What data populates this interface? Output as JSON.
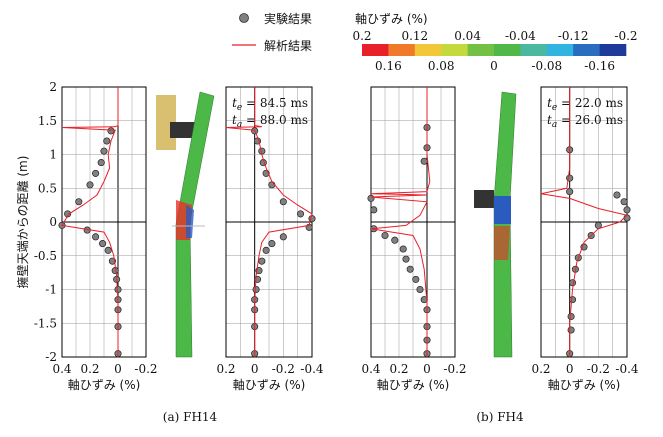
{
  "legend": [
    {
      "name": "実験結果",
      "color": "#808080",
      "marker": "circle"
    },
    {
      "name": "解析結果",
      "color": "#e8202a",
      "marker": "line"
    }
  ],
  "colorbar": {
    "title": "軸ひずみ (%)",
    "ticks": [
      0.2,
      0.16,
      0.12,
      0.08,
      0.04,
      0,
      -0.04,
      -0.08,
      -0.12,
      -0.16,
      -0.2
    ],
    "colors": [
      "#e8202a",
      "#f07a2a",
      "#f2c83a",
      "#c4d93c",
      "#74c044",
      "#50b848",
      "#4cb8a0",
      "#30b4e0",
      "#2a6cc0",
      "#1e3a9a"
    ]
  },
  "captions": [
    "(a) FH14",
    "(b) FH4"
  ],
  "chart_data": [
    {
      "type": "line",
      "ylabel": "擁壁天端からの距離 (m)",
      "xlabel": "軸ひずみ (%)",
      "ytick_labels": true,
      "xlim": [
        0.4,
        -0.2
      ],
      "xticks": [
        0.4,
        0.2,
        0,
        -0.2
      ],
      "ylim": [
        -2,
        2
      ],
      "yticks": [
        2,
        1.5,
        1,
        0.5,
        0,
        -0.5,
        -1,
        -1.5,
        -2
      ],
      "grid": true,
      "series": [
        {
          "marker": "circle",
          "color": "#808080",
          "x": [
            0.05,
            0.08,
            0.1,
            0.12,
            0.16,
            0.2,
            0.28,
            0.36,
            0.4,
            0.22,
            0.16,
            0.11,
            0.07,
            0.04,
            0.02,
            0.01,
            0,
            0,
            0,
            0,
            0
          ],
          "values": [
            1.35,
            1.2,
            1.05,
            0.88,
            0.72,
            0.55,
            0.3,
            0.12,
            -0.05,
            -0.12,
            -0.22,
            -0.32,
            -0.42,
            -0.58,
            -0.72,
            -0.85,
            -1.0,
            -1.15,
            -1.3,
            -1.55,
            -1.95
          ]
        },
        {
          "marker": "line",
          "color": "#e8202a",
          "x": [
            0,
            0,
            0,
            0.02,
            0.4,
            0.02,
            0.05,
            0.07,
            0.06,
            0.1,
            0.15,
            0.25,
            0.35,
            0.4,
            0.1,
            0.06,
            0.03,
            0.01,
            0,
            0
          ],
          "values": [
            2,
            1.5,
            1.43,
            1.41,
            1.4,
            1.36,
            1.2,
            1.0,
            0.8,
            0.6,
            0.4,
            0.25,
            0.12,
            -0.05,
            -0.15,
            -0.3,
            -0.5,
            -0.8,
            -1.2,
            -2
          ]
        }
      ]
    },
    {
      "type": "line",
      "xlabel": "軸ひずみ (%)",
      "ytick_labels": false,
      "xlim": [
        0.2,
        -0.4
      ],
      "xticks": [
        0.2,
        0,
        -0.2,
        -0.4
      ],
      "ylim": [
        -2,
        2
      ],
      "yticks": [
        2,
        1.5,
        1,
        0.5,
        0,
        -0.5,
        -1,
        -1.5,
        -2
      ],
      "grid": true,
      "annotations": [
        {
          "var": "t",
          "sub": "e",
          "text": " = 84.5 ms"
        },
        {
          "var": "t",
          "sub": "a",
          "text": " = 88.0 ms"
        }
      ],
      "series": [
        {
          "marker": "circle",
          "color": "#808080",
          "x": [
            0,
            -0.02,
            -0.05,
            -0.06,
            -0.08,
            -0.12,
            -0.2,
            -0.32,
            -0.4,
            -0.38,
            -0.2,
            -0.12,
            -0.08,
            -0.05,
            -0.03,
            -0.02,
            -0.01,
            0,
            0,
            0,
            0
          ],
          "values": [
            1.35,
            1.2,
            1.05,
            0.88,
            0.72,
            0.55,
            0.3,
            0.12,
            0.05,
            -0.08,
            -0.22,
            -0.32,
            -0.42,
            -0.58,
            -0.72,
            -0.85,
            -1.0,
            -1.15,
            -1.3,
            -1.55,
            -1.95
          ]
        },
        {
          "marker": "line",
          "color": "#e8202a",
          "x": [
            0,
            0,
            0,
            -0.05,
            0.2,
            0,
            -0.03,
            -0.05,
            -0.08,
            -0.12,
            -0.2,
            -0.3,
            -0.4,
            -0.38,
            -0.1,
            -0.05,
            -0.03,
            -0.01,
            0,
            0
          ],
          "values": [
            2,
            1.5,
            1.43,
            1.41,
            1.4,
            1.36,
            1.2,
            1.0,
            0.8,
            0.6,
            0.4,
            0.25,
            0.12,
            -0.05,
            -0.15,
            -0.3,
            -0.5,
            -0.8,
            -1.2,
            -2
          ]
        }
      ]
    },
    {
      "type": "line",
      "xlabel": "軸ひずみ (%)",
      "ytick_labels": false,
      "xlim": [
        0.4,
        -0.2
      ],
      "xticks": [
        0.4,
        0.2,
        0,
        -0.2
      ],
      "ylim": [
        -2,
        2
      ],
      "yticks": [
        2,
        1.5,
        1,
        0.5,
        0,
        -0.5,
        -1,
        -1.5,
        -2
      ],
      "grid": true,
      "series": [
        {
          "marker": "circle",
          "color": "#808080",
          "x": [
            0,
            0,
            0.02,
            0.4,
            0.38,
            0.38,
            0.3,
            0.23,
            0.17,
            0.15,
            0.12,
            0.08,
            0.05,
            0.02,
            0,
            0,
            0,
            0
          ],
          "values": [
            1.4,
            1.1,
            0.9,
            0.35,
            0.18,
            -0.1,
            -0.2,
            -0.27,
            -0.4,
            -0.55,
            -0.7,
            -0.85,
            -1.0,
            -1.15,
            -1.3,
            -1.55,
            -1.75,
            -1.95
          ]
        },
        {
          "marker": "line",
          "color": "#e8202a",
          "x": [
            0,
            0,
            0,
            -0.02,
            0,
            0.4,
            0,
            0.4,
            0,
            0.05,
            0.15,
            0.4,
            0.1,
            0.05,
            0.02,
            0,
            0
          ],
          "values": [
            2,
            1.5,
            1.0,
            0.6,
            0.45,
            0.42,
            0.4,
            0.37,
            0.3,
            0.1,
            -0.05,
            -0.1,
            -0.2,
            -0.4,
            -0.7,
            -1.2,
            -2
          ]
        }
      ]
    },
    {
      "type": "line",
      "xlabel": "軸ひずみ (%)",
      "ytick_labels": false,
      "xlim": [
        0.2,
        -0.4
      ],
      "xticks": [
        0.2,
        0,
        -0.2,
        -0.4
      ],
      "ylim": [
        -2,
        2
      ],
      "yticks": [
        2,
        1.5,
        1,
        0.5,
        0,
        -0.5,
        -1,
        -1.5,
        -2
      ],
      "grid": true,
      "annotations": [
        {
          "var": "t",
          "sub": "e",
          "text": " = 22.0 ms"
        },
        {
          "var": "t",
          "sub": "a",
          "text": " = 26.0 ms"
        }
      ],
      "series": [
        {
          "marker": "circle",
          "color": "#808080",
          "x": [
            0,
            0,
            0,
            -0.33,
            -0.38,
            -0.4,
            -0.4,
            -0.2,
            -0.15,
            -0.1,
            -0.06,
            -0.04,
            -0.02,
            -0.02,
            -0.01,
            -0.01,
            0
          ],
          "values": [
            1.07,
            0.65,
            0.45,
            0.4,
            0.3,
            0.18,
            0.06,
            -0.05,
            -0.2,
            -0.37,
            -0.53,
            -0.7,
            -0.9,
            -1.15,
            -1.4,
            -1.6,
            -1.95
          ]
        },
        {
          "marker": "line",
          "color": "#e8202a",
          "x": [
            0,
            0,
            0,
            0.02,
            0.2,
            0,
            -0.2,
            -0.4,
            -0.35,
            -0.2,
            -0.1,
            -0.05,
            -0.02,
            0,
            0
          ],
          "values": [
            2,
            1.5,
            0.8,
            0.5,
            0.42,
            0.35,
            0.2,
            0.1,
            0.0,
            -0.1,
            -0.3,
            -0.6,
            -1.0,
            -1.5,
            -2
          ]
        }
      ]
    }
  ]
}
